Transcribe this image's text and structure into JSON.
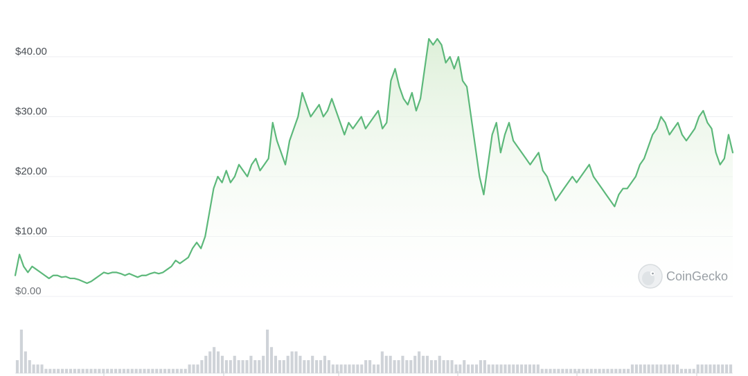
{
  "chart_data": {
    "type": "area",
    "y_unit": "USD",
    "ylim": [
      0,
      45
    ],
    "y_ticks": [
      {
        "value": 0,
        "label": "$0.00"
      },
      {
        "value": 10,
        "label": "$10.00"
      },
      {
        "value": 20,
        "label": "$20.00"
      },
      {
        "value": 30,
        "label": "$30.00"
      },
      {
        "value": 40,
        "label": "$40.00"
      }
    ],
    "grid": true,
    "x_labels_visible": false,
    "series": [
      {
        "values": [
          3.5,
          7,
          5,
          4,
          5,
          4.5,
          4,
          3.5,
          3,
          3.5,
          3.5,
          3.2,
          3.3,
          3,
          3,
          2.8,
          2.5,
          2.2,
          2.5,
          3,
          3.5,
          4,
          3.8,
          4,
          4,
          3.8,
          3.5,
          3.8,
          3.5,
          3.2,
          3.5,
          3.5,
          3.8,
          4,
          3.8,
          4,
          4.5,
          5,
          6,
          5.5,
          6,
          6.5,
          8,
          9,
          8,
          10,
          14,
          18,
          20,
          19,
          21,
          19,
          20,
          22,
          21,
          20,
          22,
          23,
          21,
          22,
          23,
          29,
          26,
          24,
          22,
          26,
          28,
          30,
          34,
          32,
          30,
          31,
          32,
          30,
          31,
          33,
          31,
          29,
          27,
          29,
          28,
          29,
          30,
          28,
          29,
          30,
          31,
          28,
          29,
          36,
          38,
          35,
          33,
          32,
          34,
          31,
          33,
          38,
          43,
          42,
          43,
          42,
          39,
          40,
          38,
          40,
          36,
          35,
          30,
          25,
          20,
          17,
          22,
          27,
          29,
          24,
          27,
          29,
          26,
          25,
          24,
          23,
          22,
          23,
          24,
          21,
          20,
          18,
          16,
          17,
          18,
          19,
          20,
          19,
          20,
          21,
          22,
          20,
          19,
          18,
          17,
          16,
          15,
          17,
          18,
          18,
          19,
          20,
          22,
          23,
          25,
          27,
          28,
          30,
          29,
          27,
          28,
          29,
          27,
          26,
          27,
          28,
          30,
          31,
          29,
          28,
          24,
          22,
          23,
          27,
          24
        ]
      }
    ],
    "colors": {
      "line": "#5cb87a",
      "fill_top": "#dcefd7",
      "fill_bottom": "#ffffff",
      "grid": "#eceef1",
      "volume": "#cfd3d8"
    }
  },
  "volume_data": {
    "values": [
      3,
      10,
      5,
      3,
      2,
      2,
      2,
      1,
      1,
      1,
      1,
      1,
      1,
      1,
      1,
      1,
      1,
      1,
      1,
      1,
      1,
      1,
      1,
      1,
      1,
      1,
      1,
      1,
      1,
      1,
      1,
      1,
      1,
      1,
      1,
      1,
      1,
      1,
      1,
      1,
      1,
      1,
      2,
      2,
      2,
      3,
      4,
      5,
      6,
      5,
      4,
      3,
      3,
      4,
      3,
      3,
      3,
      4,
      3,
      3,
      4,
      10,
      6,
      4,
      3,
      3,
      4,
      5,
      5,
      4,
      3,
      3,
      4,
      3,
      3,
      4,
      3,
      2,
      2,
      2,
      2,
      2,
      2,
      2,
      2,
      3,
      3,
      2,
      2,
      5,
      4,
      4,
      3,
      3,
      4,
      3,
      3,
      4,
      5,
      4,
      4,
      3,
      3,
      4,
      3,
      3,
      3,
      2,
      2,
      3,
      2,
      2,
      2,
      3,
      3,
      2,
      2,
      2,
      2,
      2,
      2,
      2,
      2,
      2,
      2,
      2,
      2,
      2,
      1,
      1,
      1,
      1,
      1,
      1,
      1,
      1,
      1,
      1,
      1,
      1,
      1,
      1,
      1,
      1,
      1,
      1,
      1,
      1,
      1,
      1,
      2,
      2,
      2,
      2,
      2,
      2,
      2,
      2,
      2,
      2,
      2,
      2,
      1,
      1,
      1,
      1,
      2,
      2,
      2,
      2,
      2,
      2,
      2,
      2,
      2
    ]
  },
  "watermark": {
    "text": "CoinGecko",
    "icon": "gecko-logo-icon"
  }
}
